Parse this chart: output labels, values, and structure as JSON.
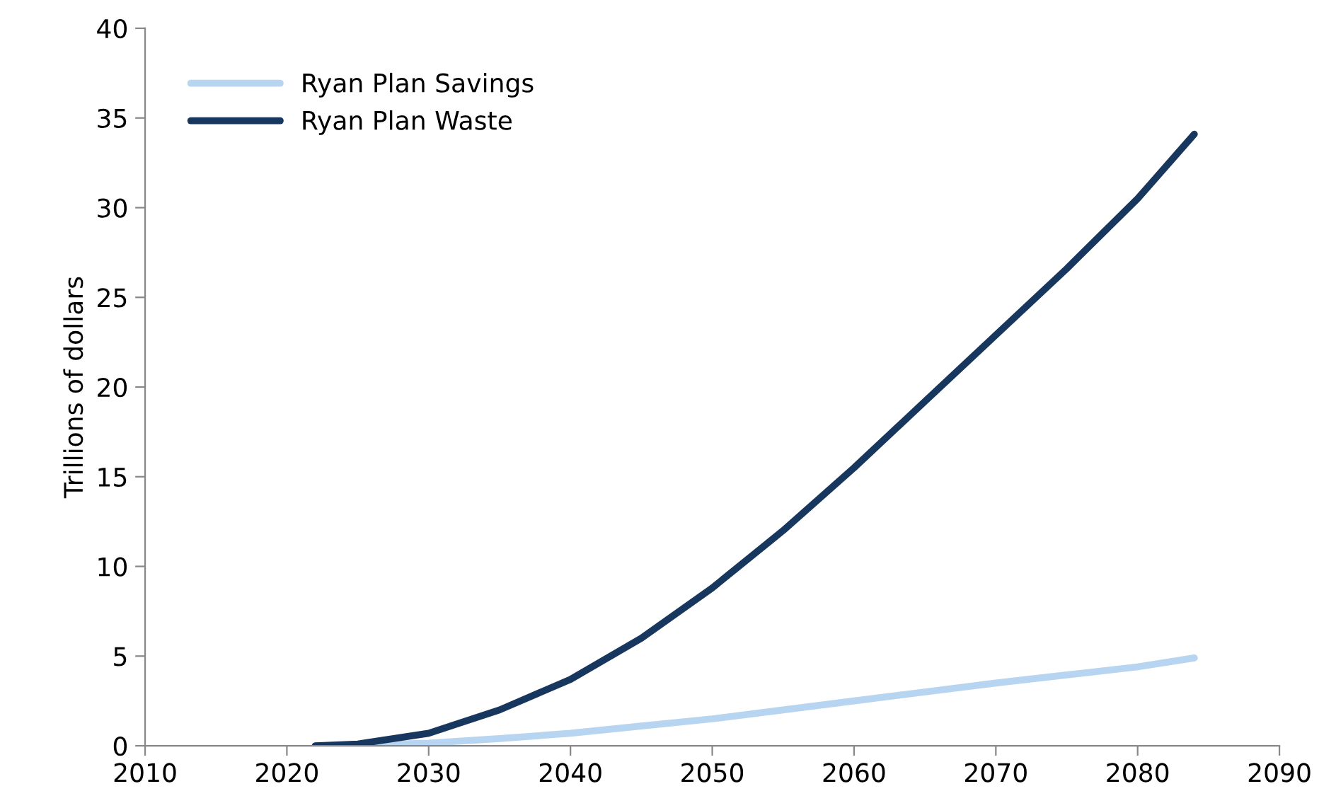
{
  "chart_data": {
    "type": "line",
    "ylabel": "Trillions of dollars",
    "xlim": [
      2010,
      2090
    ],
    "xticks": [
      2010,
      2020,
      2030,
      2040,
      2050,
      2060,
      2070,
      2080,
      2090
    ],
    "ylim": [
      0,
      40
    ],
    "yticks": [
      0,
      5,
      10,
      15,
      20,
      25,
      30,
      35,
      40
    ],
    "grid": false,
    "legend": "top left",
    "marker": "none",
    "line_style": "solid",
    "series": [
      {
        "name": "Ryan Plan Savings",
        "color": "#b7d5f0",
        "x": [
          2022,
          2025,
          2030,
          2035,
          2040,
          2045,
          2050,
          2055,
          2060,
          2065,
          2070,
          2075,
          2080,
          2084
        ],
        "values": [
          0,
          0.03,
          0.15,
          0.4,
          0.7,
          1.1,
          1.5,
          2.0,
          2.5,
          3.0,
          3.5,
          3.95,
          4.4,
          4.9
        ]
      },
      {
        "name": "Ryan Plan Waste",
        "color": "#17375e",
        "x": [
          2022,
          2025,
          2030,
          2035,
          2040,
          2045,
          2050,
          2055,
          2060,
          2065,
          2070,
          2075,
          2080,
          2084
        ],
        "values": [
          0,
          0.1,
          0.7,
          2.0,
          3.7,
          6.0,
          8.8,
          12.0,
          15.5,
          19.2,
          22.9,
          26.6,
          30.5,
          34.1
        ]
      }
    ]
  }
}
